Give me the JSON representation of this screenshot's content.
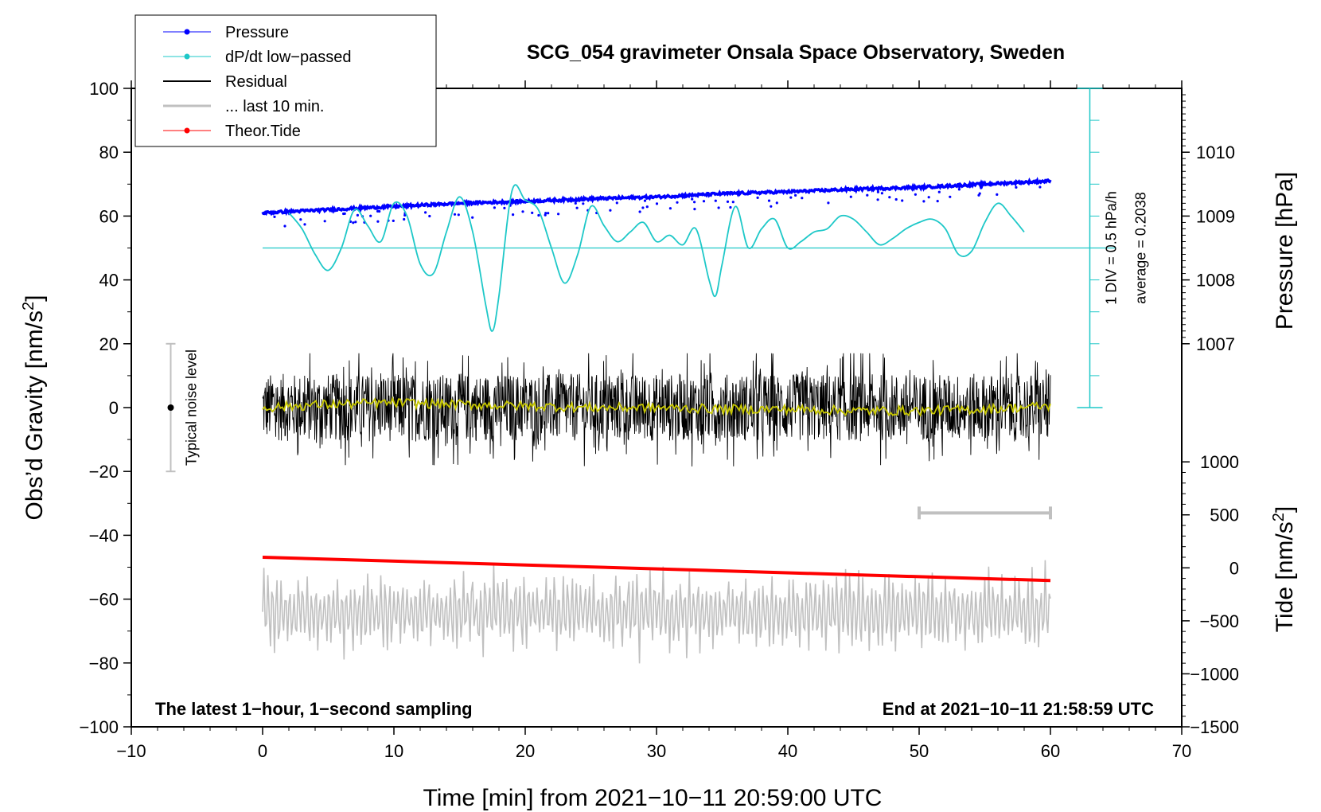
{
  "chart_data": {
    "type": "line",
    "title": "SCG_054 gravimeter Onsala Space Observatory, Sweden",
    "xlabel": "Time [min] from 2021−10−11 20:59:00 UTC",
    "ylabel_main": "Obs’d Gravity [nm/s",
    "ylabel_main_sup": "2",
    "ylabel_main_end": "]",
    "ylabel_pressure": "Pressure [hPa]",
    "ylabel_tide": "Tide [nm/s",
    "ylabel_tide_sup": "2",
    "ylabel_tide_end": "]",
    "xlim": [
      -10,
      70
    ],
    "ylim": [
      -100,
      100
    ],
    "x_ticks": [
      "−10",
      "0",
      "10",
      "20",
      "30",
      "40",
      "50",
      "60",
      "70"
    ],
    "x_tick_values": [
      -10,
      0,
      10,
      20,
      30,
      40,
      50,
      60,
      70
    ],
    "y_ticks": [
      "100",
      "80",
      "60",
      "40",
      "20",
      "0",
      "−20",
      "−40",
      "−60",
      "−80",
      "−100"
    ],
    "y_tick_values": [
      100,
      80,
      60,
      40,
      20,
      0,
      -20,
      -40,
      -60,
      -80,
      -100
    ],
    "pressure_ticks": [
      "1010",
      "1009",
      "1008",
      "1007"
    ],
    "pressure_tick_values": [
      1010,
      1009,
      1008,
      1007
    ],
    "pressure_axis": {
      "value_at_gravity_60": 1009,
      "hpa_per_20_nms2": 1
    },
    "tide_ticks": [
      "1000",
      "500",
      "0",
      "−500",
      "−1000",
      "−1500"
    ],
    "tide_tick_values": [
      1000,
      500,
      0,
      -500,
      -1000,
      -1500
    ],
    "tide_axis": {
      "value_at_gravity_neg100": -1500,
      "value_at_gravity_neg17": 1000
    },
    "legend": [
      {
        "label": "Pressure",
        "color": "#0000ff",
        "marker": true
      },
      {
        "label": "dP/dt low−passed",
        "color": "#1ec8c8",
        "marker": true
      },
      {
        "label": "Residual",
        "color": "#000000",
        "marker": false
      },
      {
        "label": "... last 10 min.",
        "color": "#c0c0c0",
        "marker": false
      },
      {
        "label": "Theor.Tide",
        "color": "#ff0000",
        "marker": true
      }
    ],
    "series": [
      {
        "name": "Pressure",
        "color": "#0000ff",
        "units": "hPa",
        "x": [
          0,
          5,
          10,
          15,
          20,
          25,
          30,
          35,
          40,
          45,
          50,
          55,
          60
        ],
        "values": [
          1009.05,
          1009.1,
          1009.15,
          1009.2,
          1009.23,
          1009.27,
          1009.3,
          1009.35,
          1009.38,
          1009.42,
          1009.45,
          1009.5,
          1009.55
        ]
      },
      {
        "name": "dP/dt low-passed",
        "color": "#1ec8c8",
        "units": "gravity-axis",
        "x": [
          2,
          3,
          4,
          5,
          6,
          7,
          8,
          9,
          10,
          11,
          12,
          13,
          14,
          15,
          16,
          17,
          17.5,
          18,
          19,
          20,
          21,
          22,
          23,
          24,
          25,
          26,
          27,
          28,
          29,
          30,
          31,
          32,
          33,
          34,
          34.5,
          35,
          36,
          37,
          38,
          39,
          40,
          41,
          42,
          43,
          44,
          45,
          46,
          47,
          48,
          49,
          50,
          51,
          52,
          53,
          54,
          55,
          56,
          57,
          58
        ],
        "values": [
          61,
          56,
          48,
          43,
          50,
          62,
          57,
          52,
          64,
          60,
          45,
          42,
          55,
          66,
          55,
          32,
          24,
          35,
          68,
          65,
          62,
          50,
          39,
          48,
          63,
          57,
          52,
          55,
          58,
          52,
          54,
          51,
          56,
          40,
          35,
          45,
          63,
          50,
          56,
          59,
          50,
          52,
          55,
          56,
          60,
          59,
          55,
          51,
          53,
          56,
          58,
          59,
          56,
          48,
          49,
          58,
          64,
          60,
          55
        ]
      },
      {
        "name": "Residual",
        "color": "#000000",
        "x_range": [
          0,
          60
        ],
        "values_range": [
          -20,
          17
        ],
        "mean": 0
      },
      {
        "name": "Smoothed residual",
        "color": "#c8c800",
        "x": [
          0,
          5,
          10,
          15,
          20,
          25,
          30,
          35,
          40,
          45,
          50,
          55,
          60
        ],
        "values": [
          0,
          1,
          1.5,
          1,
          0.5,
          0,
          0,
          -0.5,
          -0.5,
          -1,
          -1,
          -0.5,
          0.5
        ]
      },
      {
        "name": "... last 10 min.",
        "color": "#c0c0c0",
        "x_range": [
          0,
          60
        ],
        "center": -64,
        "values_range": [
          -81,
          -47
        ]
      },
      {
        "name": "Theor.Tide",
        "color": "#ff0000",
        "units": "nm/s²",
        "x": [
          0,
          60
        ],
        "values": [
          100,
          -120
        ]
      }
    ],
    "annotations": {
      "noise_label": "Typical noise level",
      "noise_range": [
        -20,
        20
      ],
      "noise_x": -7,
      "div_label": "1 DIV = 0.5 hPa/h",
      "avg_label": "average = 0.2038",
      "dpdt_baseline": 50,
      "dpdt_scale_x": 63,
      "dpdt_scale_range": [
        0,
        100
      ],
      "ten_min_bar": [
        50,
        60
      ],
      "ten_min_bar_y": -33,
      "bottom_left": "The latest 1−hour, 1−second sampling",
      "bottom_right": "End at 2021−10−11 21:58:59 UTC"
    },
    "grid": false,
    "legend_position": "top-left"
  }
}
